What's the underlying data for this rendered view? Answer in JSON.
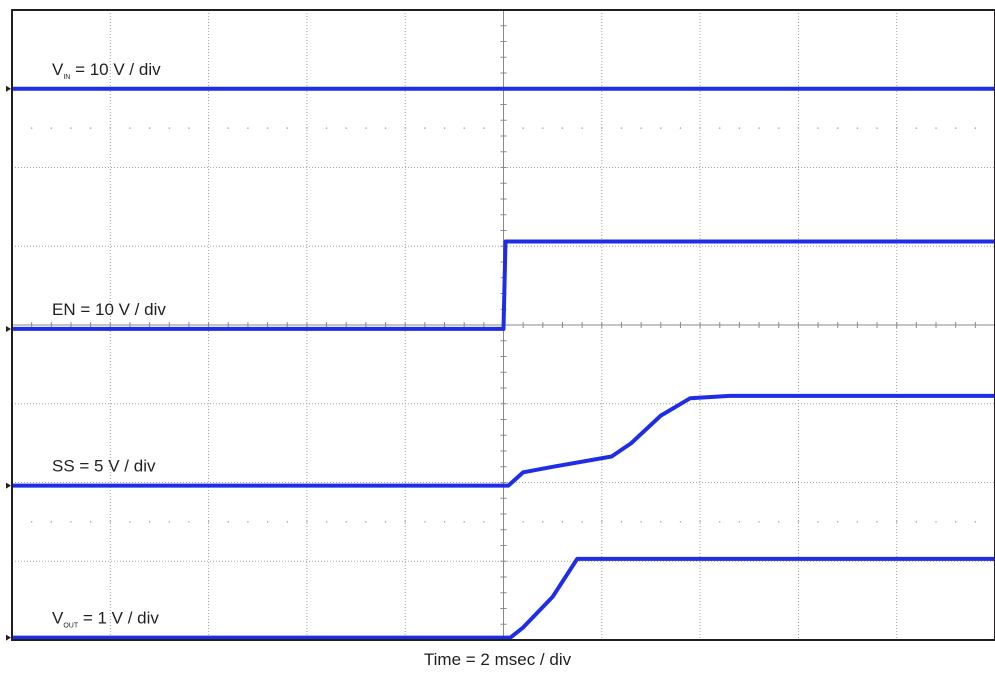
{
  "chart_data": {
    "type": "line",
    "title": "",
    "xlabel": "Time = 2 msec / div",
    "ylabel": "",
    "x_unit": "div",
    "y_unit": "div",
    "xlim": [
      0,
      10
    ],
    "ylim": [
      0,
      8
    ],
    "grid": true,
    "colors": {
      "trace": "#1f2ee6",
      "frame": "#231f20",
      "grid": "#a0a0a0",
      "background": "#ffffff"
    },
    "series": [
      {
        "name": "V_IN",
        "label_main": "V",
        "label_sub": "IN",
        "label_rest": "= 10 V / div",
        "points": [
          [
            0,
            7.0
          ],
          [
            10,
            7.0
          ]
        ]
      },
      {
        "name": "EN",
        "label_main": "EN = 10 V / div",
        "label_sub": "",
        "label_rest": "",
        "points": [
          [
            0,
            3.95
          ],
          [
            5.0,
            3.95
          ],
          [
            5.02,
            5.06
          ],
          [
            10,
            5.06
          ]
        ]
      },
      {
        "name": "SS",
        "label_main": "SS = 5 V / div",
        "label_sub": "",
        "label_rest": "",
        "points": [
          [
            0,
            1.96
          ],
          [
            5.05,
            1.96
          ],
          [
            5.2,
            2.13
          ],
          [
            5.5,
            2.2
          ],
          [
            6.1,
            2.33
          ],
          [
            6.3,
            2.5
          ],
          [
            6.6,
            2.85
          ],
          [
            6.9,
            3.07
          ],
          [
            7.3,
            3.1
          ],
          [
            10,
            3.1
          ]
        ]
      },
      {
        "name": "V_OUT",
        "label_main": "V",
        "label_sub": "OUT",
        "label_rest": "= 1 V / div",
        "points": [
          [
            0,
            0.03
          ],
          [
            5.07,
            0.03
          ],
          [
            5.2,
            0.16
          ],
          [
            5.5,
            0.55
          ],
          [
            5.75,
            1.03
          ],
          [
            10,
            1.03
          ]
        ]
      }
    ]
  }
}
